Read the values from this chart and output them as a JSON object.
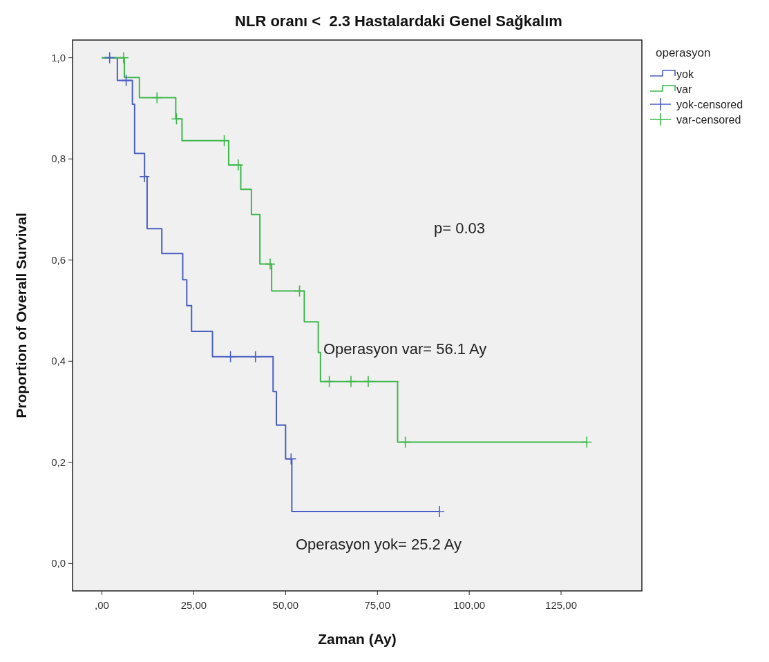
{
  "chart_data": {
    "type": "step",
    "title": "NLR oranı <  2.3 Hastalardaki Genel Sağkalım",
    "xlabel": "Zaman (Ay)",
    "ylabel": "Proportion of Overall Survival",
    "legend_title": "operasyon",
    "legend": "right",
    "grid": false,
    "xlim": [
      -8,
      147
    ],
    "xticks": [
      {
        "value": 0,
        "label": ",00"
      },
      {
        "value": 25,
        "label": "25,00"
      },
      {
        "value": 50,
        "label": "50,00"
      },
      {
        "value": 75,
        "label": "75,00"
      },
      {
        "value": 100,
        "label": "100,00"
      },
      {
        "value": 125,
        "label": "125,00"
      }
    ],
    "ylim": [
      -0.054,
      1.035
    ],
    "yticks": [
      {
        "value": 0,
        "label": "0,0"
      },
      {
        "value": 0.2,
        "label": "0,2"
      },
      {
        "value": 0.4,
        "label": "0,4"
      },
      {
        "value": 0.6,
        "label": "0,6"
      },
      {
        "value": 0.8,
        "label": "0,8"
      },
      {
        "value": 1,
        "label": "1,0"
      }
    ],
    "series": [
      {
        "name": "yok",
        "color": "#4a5fc1",
        "x": [
          0,
          4.2,
          8.3,
          8.9,
          11.6,
          12.3,
          16.3,
          22,
          23.1,
          24.4,
          30.1,
          46.6,
          47.5,
          50,
          51.7,
          91.9
        ],
        "values": [
          1,
          0.955,
          0.908,
          0.811,
          0.765,
          0.662,
          0.613,
          0.561,
          0.51,
          0.459,
          0.409,
          0.34,
          0.274,
          0.207,
          0.103,
          0.103
        ]
      },
      {
        "name": "var",
        "color": "#3cb84a",
        "x": [
          0,
          6.1,
          10.2,
          20.1,
          21.8,
          34.5,
          37.8,
          40.7,
          43,
          46.2,
          55.1,
          58.9,
          59.5,
          80.5,
          132
        ],
        "values": [
          1,
          0.961,
          0.921,
          0.879,
          0.836,
          0.788,
          0.74,
          0.69,
          0.592,
          0.539,
          0.478,
          0.417,
          0.36,
          0.24,
          0.24
        ]
      },
      {
        "name": "yok-censored",
        "type": "scatter",
        "marker": "cross",
        "color": "#4a5fc1",
        "x": [
          2.1,
          6.6,
          11.6,
          35,
          41.8,
          51.5,
          91.9
        ],
        "values": [
          1,
          0.955,
          0.765,
          0.409,
          0.409,
          0.207,
          0.103
        ]
      },
      {
        "name": "var-censored",
        "type": "scatter",
        "marker": "cross",
        "color": "#3cb84a",
        "x": [
          5.9,
          15,
          20.3,
          33.3,
          37.1,
          45.8,
          53.8,
          61.9,
          67.8,
          72.5,
          82.6,
          132
        ],
        "values": [
          1,
          0.921,
          0.879,
          0.836,
          0.788,
          0.592,
          0.539,
          0.36,
          0.36,
          0.36,
          0.24,
          0.24
        ]
      }
    ],
    "annotations": [
      "p= 0.03",
      "Operasyon var= 56.1 Ay",
      "Operasyon yok= 25.2 Ay"
    ]
  }
}
